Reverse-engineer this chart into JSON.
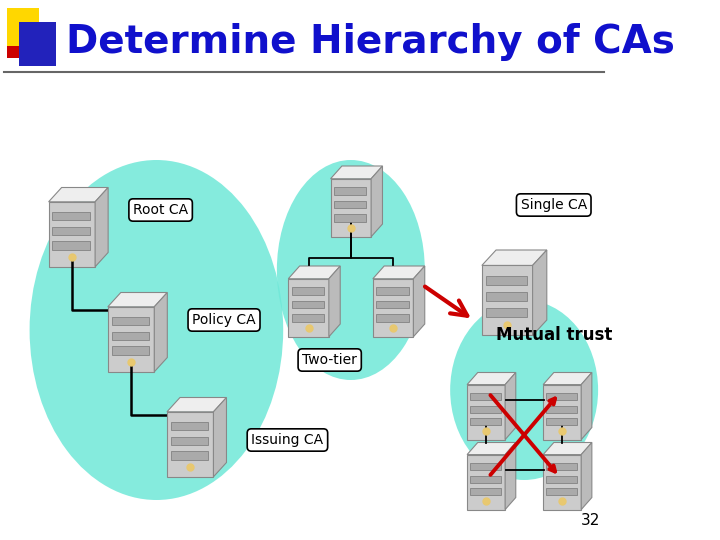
{
  "title": "Determine Hierarchy of CAs",
  "title_color": "#1010CC",
  "title_fontsize": 28,
  "bg_color": "#FFFFFF",
  "slide_number": "32",
  "labels": {
    "root_ca": "Root CA",
    "policy_ca": "Policy CA",
    "issuing_ca": "Issuing CA",
    "single_ca": "Single CA",
    "two_tier": "Two-tier",
    "mutual_trust": "Mutual trust"
  },
  "teal_color": "#70E8D8",
  "server_color": "#D8D8D8"
}
